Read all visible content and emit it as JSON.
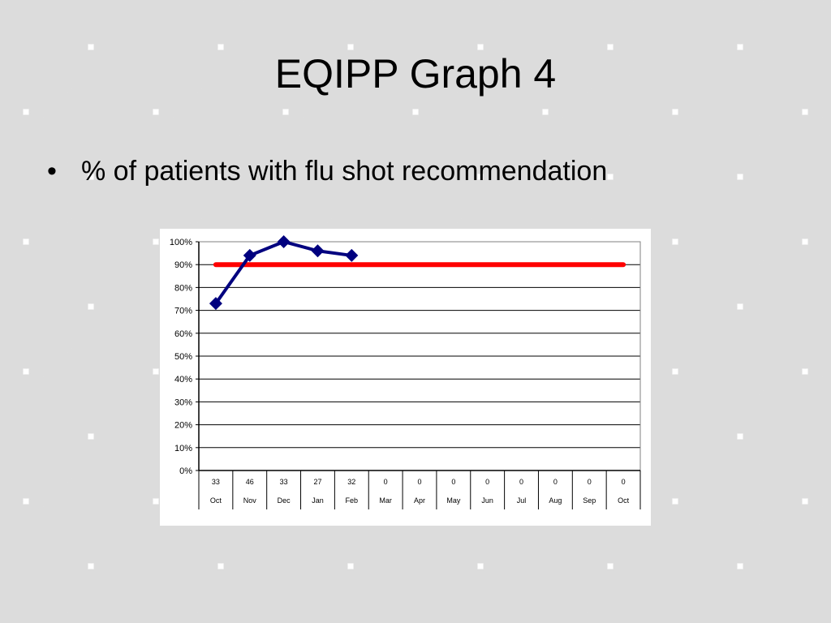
{
  "slide": {
    "title": "EQIPP Graph 4",
    "bullet_marker": "•",
    "bullet_text": "% of patients with flu shot recommendation"
  },
  "chart_data": {
    "type": "line",
    "categories": [
      "Oct",
      "Nov",
      "Dec",
      "Jan",
      "Feb",
      "Mar",
      "Apr",
      "May",
      "Jun",
      "Jul",
      "Aug",
      "Sep",
      "Oct"
    ],
    "counts": [
      "33",
      "46",
      "33",
      "27",
      "32",
      "0",
      "0",
      "0",
      "0",
      "0",
      "0",
      "0",
      "0"
    ],
    "series": [
      {
        "values": [
          73,
          94,
          100,
          96,
          94,
          null,
          null,
          null,
          null,
          null,
          null,
          null,
          null
        ],
        "color": "#00007f"
      },
      {
        "values": [
          90,
          90,
          90,
          90,
          90,
          90,
          90,
          90,
          90,
          90,
          90,
          90,
          90
        ],
        "color": "#ff0000"
      }
    ],
    "y_ticks": [
      "0%",
      "10%",
      "20%",
      "30%",
      "40%",
      "50%",
      "60%",
      "70%",
      "80%",
      "90%",
      "100%"
    ],
    "ylim": [
      0,
      100
    ],
    "grid": true,
    "title": "",
    "xlabel": "",
    "ylabel": ""
  }
}
